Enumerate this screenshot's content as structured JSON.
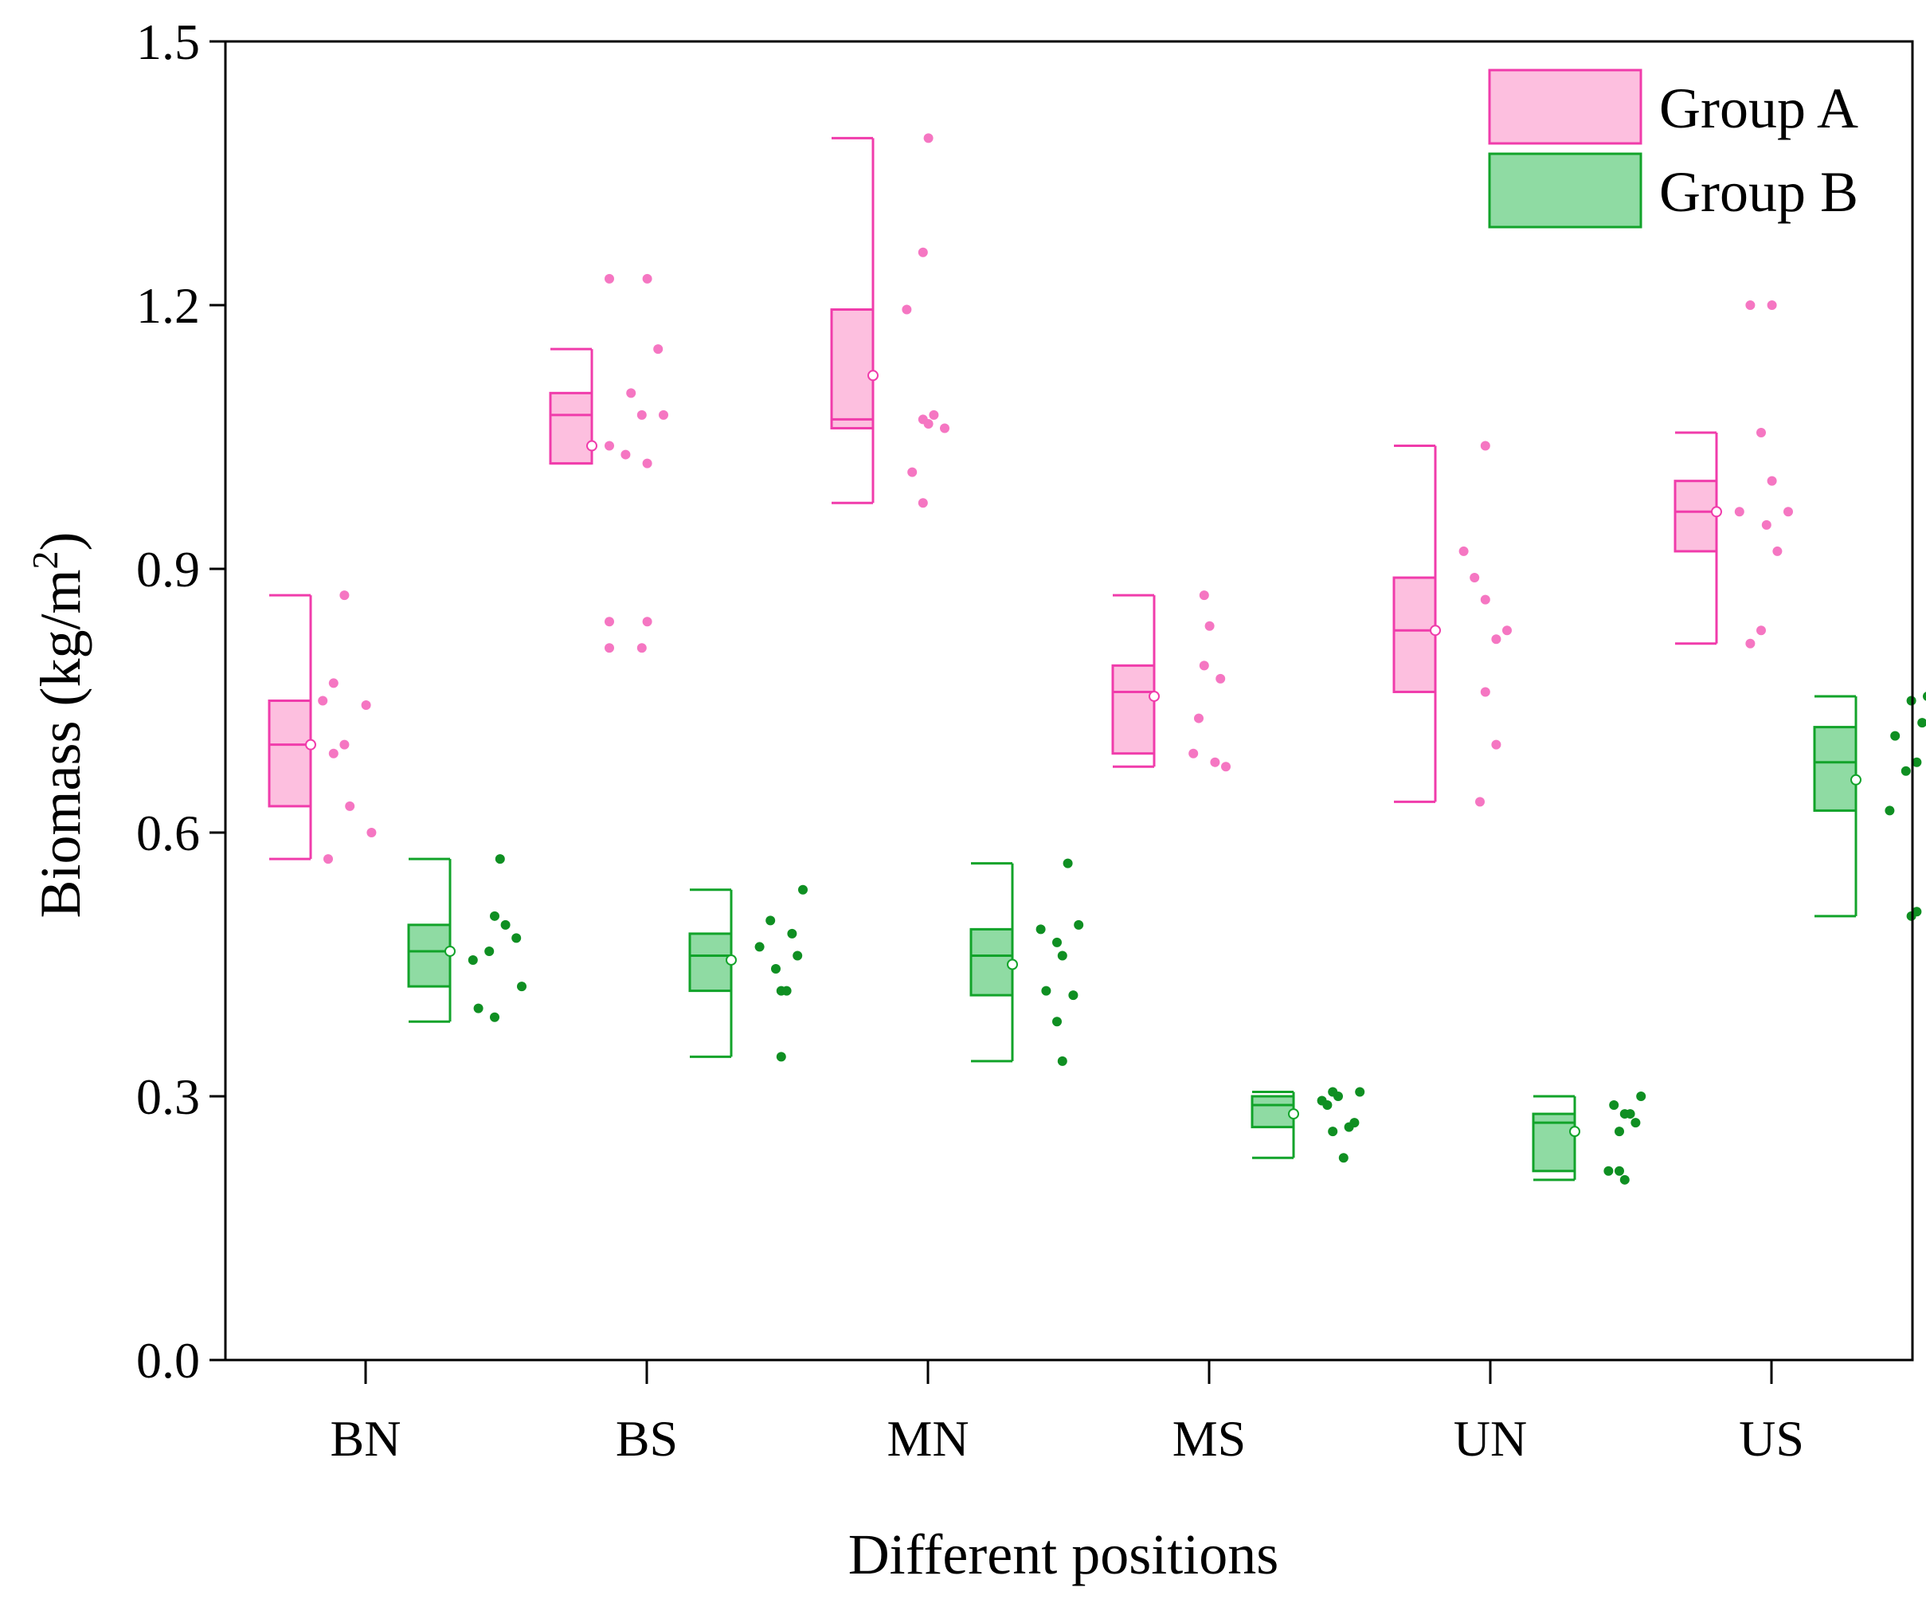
{
  "chart_data": {
    "type": "box",
    "title": "",
    "xlabel": "Different positions",
    "ylabel": "Biomass (kg/m",
    "ylabel_sup": "2",
    "ylabel_end": ")",
    "ylim": [
      0.0,
      1.5
    ],
    "yticks": [
      "0.0",
      "0.3",
      "0.6",
      "0.9",
      "1.2",
      "1.5"
    ],
    "categories": [
      "BN",
      "BS",
      "MN",
      "MS",
      "UN",
      "US"
    ],
    "legend_position": "top-right",
    "series": [
      {
        "name": "Group A",
        "fill": "#fdbfdf",
        "stroke": "#f03cab",
        "point_color": "#f576c2",
        "boxes": [
          {
            "whisker_low": 0.57,
            "q1": 0.63,
            "median": 0.7,
            "q3": 0.75,
            "whisker_high": 0.87,
            "mean": 0.7,
            "points": [
              [
                0.57,
                0.0
              ],
              [
                0.6,
                0.8
              ],
              [
                0.63,
                0.4
              ],
              [
                0.69,
                0.1
              ],
              [
                0.7,
                0.3
              ],
              [
                0.745,
                0.7
              ],
              [
                0.75,
                -0.1
              ],
              [
                0.77,
                0.1
              ],
              [
                0.87,
                0.3
              ]
            ]
          },
          {
            "whisker_low": 1.02,
            "q1": 1.02,
            "median": 1.075,
            "q3": 1.1,
            "whisker_high": 1.15,
            "mean": 1.04,
            "points": [
              [
                0.81,
                0.0
              ],
              [
                0.81,
                0.6
              ],
              [
                0.84,
                0.0
              ],
              [
                0.84,
                0.7
              ],
              [
                1.02,
                0.7
              ],
              [
                1.03,
                0.3
              ],
              [
                1.04,
                0.0
              ],
              [
                1.075,
                0.6
              ],
              [
                1.075,
                1.0
              ],
              [
                1.1,
                0.4
              ],
              [
                1.15,
                0.9
              ],
              [
                1.23,
                0.0
              ],
              [
                1.23,
                0.7
              ]
            ]
          },
          {
            "whisker_low": 0.975,
            "q1": 1.06,
            "median": 1.07,
            "q3": 1.195,
            "whisker_high": 1.39,
            "mean": 1.12,
            "points": [
              [
                0.975,
                0.6
              ],
              [
                1.01,
                0.4
              ],
              [
                1.06,
                1.0
              ],
              [
                1.065,
                0.7
              ],
              [
                1.07,
                0.6
              ],
              [
                1.075,
                0.8
              ],
              [
                1.195,
                0.3
              ],
              [
                1.26,
                0.6
              ],
              [
                1.39,
                0.7
              ]
            ]
          },
          {
            "whisker_low": 0.675,
            "q1": 0.69,
            "median": 0.76,
            "q3": 0.79,
            "whisker_high": 0.87,
            "mean": 0.755,
            "points": [
              [
                0.675,
                1.0
              ],
              [
                0.68,
                0.8
              ],
              [
                0.69,
                0.4
              ],
              [
                0.73,
                0.5
              ],
              [
                0.775,
                0.9
              ],
              [
                0.79,
                0.6
              ],
              [
                0.835,
                0.7
              ],
              [
                0.87,
                0.6
              ]
            ]
          },
          {
            "whisker_low": 0.635,
            "q1": 0.76,
            "median": 0.83,
            "q3": 0.89,
            "whisker_high": 1.04,
            "mean": 0.83,
            "points": [
              [
                0.635,
                0.5
              ],
              [
                0.7,
                0.8
              ],
              [
                0.76,
                0.6
              ],
              [
                0.82,
                0.8
              ],
              [
                0.83,
                1.0
              ],
              [
                0.865,
                0.6
              ],
              [
                0.89,
                0.4
              ],
              [
                0.92,
                0.2
              ],
              [
                1.04,
                0.6
              ]
            ]
          },
          {
            "whisker_low": 0.815,
            "q1": 0.92,
            "median": 0.965,
            "q3": 1.0,
            "whisker_high": 1.055,
            "mean": 0.965,
            "points": [
              [
                0.815,
                0.3
              ],
              [
                0.83,
                0.5
              ],
              [
                0.92,
                0.8
              ],
              [
                0.95,
                0.6
              ],
              [
                0.965,
                0.1
              ],
              [
                0.965,
                1.0
              ],
              [
                1.0,
                0.7
              ],
              [
                1.055,
                0.5
              ],
              [
                1.2,
                0.3
              ],
              [
                1.2,
                0.7
              ]
            ]
          }
        ]
      },
      {
        "name": "Group B",
        "fill": "#8fdba3",
        "stroke": "#12a32a",
        "point_color": "#0f8f22",
        "boxes": [
          {
            "whisker_low": 0.385,
            "q1": 0.425,
            "median": 0.465,
            "q3": 0.495,
            "whisker_high": 0.57,
            "mean": 0.465,
            "points": [
              [
                0.39,
                0.5
              ],
              [
                0.4,
                0.2
              ],
              [
                0.425,
                1.0
              ],
              [
                0.455,
                0.1
              ],
              [
                0.465,
                0.4
              ],
              [
                0.48,
                0.9
              ],
              [
                0.495,
                0.7
              ],
              [
                0.505,
                0.5
              ],
              [
                0.57,
                0.6
              ]
            ]
          },
          {
            "whisker_low": 0.345,
            "q1": 0.42,
            "median": 0.46,
            "q3": 0.485,
            "whisker_high": 0.535,
            "mean": 0.455,
            "points": [
              [
                0.345,
                0.6
              ],
              [
                0.42,
                0.6
              ],
              [
                0.42,
                0.7
              ],
              [
                0.445,
                0.5
              ],
              [
                0.46,
                0.9
              ],
              [
                0.47,
                0.2
              ],
              [
                0.485,
                0.8
              ],
              [
                0.5,
                0.4
              ],
              [
                0.535,
                1.0
              ]
            ]
          },
          {
            "whisker_low": 0.34,
            "q1": 0.415,
            "median": 0.46,
            "q3": 0.49,
            "whisker_high": 0.565,
            "mean": 0.45,
            "points": [
              [
                0.34,
                0.6
              ],
              [
                0.385,
                0.5
              ],
              [
                0.415,
                0.8
              ],
              [
                0.42,
                0.3
              ],
              [
                0.46,
                0.6
              ],
              [
                0.475,
                0.5
              ],
              [
                0.49,
                0.2
              ],
              [
                0.495,
                0.9
              ],
              [
                0.565,
                0.7
              ]
            ]
          },
          {
            "whisker_low": 0.23,
            "q1": 0.265,
            "median": 0.29,
            "q3": 0.3,
            "whisker_high": 0.305,
            "mean": 0.28,
            "points": [
              [
                0.23,
                0.6
              ],
              [
                0.26,
                0.4
              ],
              [
                0.265,
                0.7
              ],
              [
                0.27,
                0.8
              ],
              [
                0.29,
                0.3
              ],
              [
                0.295,
                0.2
              ],
              [
                0.3,
                0.5
              ],
              [
                0.305,
                0.4
              ],
              [
                0.305,
                0.9
              ]
            ]
          },
          {
            "whisker_low": 0.205,
            "q1": 0.215,
            "median": 0.27,
            "q3": 0.28,
            "whisker_high": 0.3,
            "mean": 0.26,
            "points": [
              [
                0.205,
                0.6
              ],
              [
                0.215,
                0.3
              ],
              [
                0.215,
                0.5
              ],
              [
                0.26,
                0.5
              ],
              [
                0.27,
                0.8
              ],
              [
                0.28,
                0.6
              ],
              [
                0.28,
                0.7
              ],
              [
                0.29,
                0.4
              ],
              [
                0.3,
                0.9
              ]
            ]
          },
          {
            "whisker_low": 0.505,
            "q1": 0.625,
            "median": 0.68,
            "q3": 0.72,
            "whisker_high": 0.755,
            "mean": 0.66,
            "points": [
              [
                0.505,
                0.7
              ],
              [
                0.51,
                0.8
              ],
              [
                0.625,
                0.3
              ],
              [
                0.67,
                0.6
              ],
              [
                0.68,
                0.8
              ],
              [
                0.71,
                0.4
              ],
              [
                0.725,
                0.9
              ],
              [
                0.75,
                0.7
              ],
              [
                0.755,
                1.0
              ]
            ]
          }
        ]
      }
    ]
  }
}
